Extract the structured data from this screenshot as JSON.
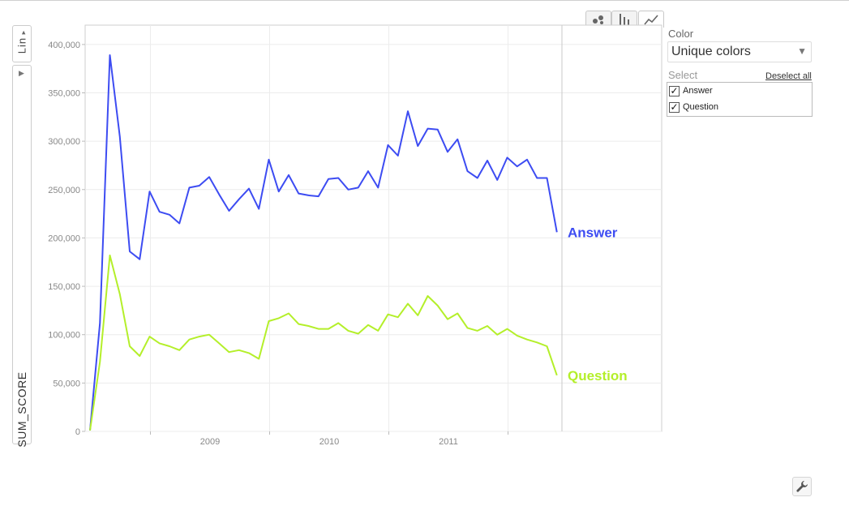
{
  "controls": {
    "y_scale": "Lin",
    "y_variable": "SUM_SCORE",
    "chart_types": [
      {
        "name": "bubble",
        "icon": "bubble-chart-icon"
      },
      {
        "name": "bar",
        "icon": "bar-chart-icon"
      },
      {
        "name": "line",
        "icon": "line-chart-icon",
        "active": true
      }
    ]
  },
  "panel": {
    "color_label": "Color",
    "color_value": "Unique colors",
    "select_label": "Select",
    "deselect_all": "Deselect all",
    "items": [
      {
        "label": "Answer",
        "checked": true
      },
      {
        "label": "Question",
        "checked": true
      }
    ]
  },
  "chart_data": {
    "type": "line",
    "xlabel": "",
    "ylabel": "SUM_SCORE",
    "ylim": [
      0,
      420000
    ],
    "yticks": [
      0,
      50000,
      100000,
      150000,
      200000,
      250000,
      300000,
      350000,
      400000
    ],
    "x_tick_labels": [
      "2009",
      "2010",
      "2011"
    ],
    "x_start": "2008-07",
    "x": [
      "2008-07",
      "2008-08",
      "2008-09",
      "2008-10",
      "2008-11",
      "2008-12",
      "2009-01",
      "2009-02",
      "2009-03",
      "2009-04",
      "2009-05",
      "2009-06",
      "2009-07",
      "2009-08",
      "2009-09",
      "2009-10",
      "2009-11",
      "2009-12",
      "2010-01",
      "2010-02",
      "2010-03",
      "2010-04",
      "2010-05",
      "2010-06",
      "2010-07",
      "2010-08",
      "2010-09",
      "2010-10",
      "2010-11",
      "2010-12",
      "2011-01",
      "2011-02",
      "2011-03",
      "2011-04",
      "2011-05",
      "2011-06",
      "2011-07",
      "2011-08",
      "2011-09",
      "2011-10",
      "2011-11",
      "2011-12",
      "2012-01",
      "2012-02",
      "2012-03",
      "2012-04",
      "2012-05",
      "2012-06"
    ],
    "grid": true,
    "series": [
      {
        "name": "Answer",
        "color": "#3d4cf2",
        "values": [
          1000,
          112000,
          389000,
          305000,
          186000,
          178000,
          248000,
          227000,
          224000,
          215000,
          252000,
          254000,
          263000,
          245000,
          228000,
          240000,
          251000,
          230000,
          281000,
          248000,
          265000,
          246000,
          244000,
          243000,
          261000,
          262000,
          250000,
          252000,
          269000,
          252000,
          296000,
          285000,
          331000,
          295000,
          313000,
          312000,
          289000,
          302000,
          269000,
          262000,
          280000,
          260000,
          283000,
          274000,
          281000,
          262000,
          262000,
          206000
        ]
      },
      {
        "name": "Question",
        "color": "#b4ef2a",
        "values": [
          1000,
          72000,
          182000,
          142000,
          88000,
          78000,
          98000,
          91000,
          88000,
          84000,
          95000,
          98000,
          100000,
          91000,
          82000,
          84000,
          81000,
          75000,
          114000,
          117000,
          122000,
          111000,
          109000,
          106000,
          106000,
          112000,
          104000,
          101000,
          110000,
          104000,
          121000,
          118000,
          132000,
          120000,
          140000,
          130000,
          116000,
          122000,
          107000,
          104000,
          109000,
          100000,
          106000,
          99000,
          95000,
          92000,
          88000,
          58000
        ]
      }
    ],
    "annotations": [
      "Answer",
      "Question"
    ]
  }
}
